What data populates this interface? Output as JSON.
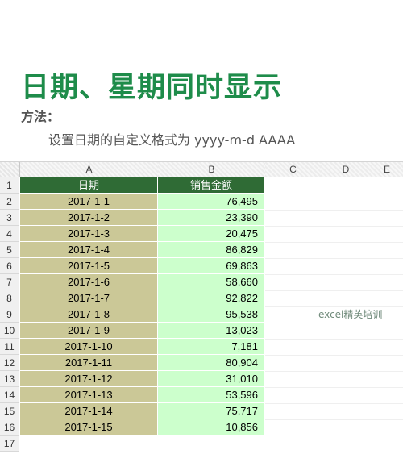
{
  "title": "日期、星期同时显示",
  "method_label": "方法：",
  "instruction": "设置日期的自定义格式为 yyyy-m-d AAAA",
  "watermark": "excel精英培训",
  "sheet": {
    "columns": [
      "A",
      "B",
      "C",
      "D",
      "E"
    ],
    "header": {
      "row": "1",
      "date": "日期",
      "amount": "销售金额"
    },
    "rows": [
      {
        "num": "2",
        "date": "2017-1-1",
        "amount": "76,495"
      },
      {
        "num": "3",
        "date": "2017-1-2",
        "amount": "23,390"
      },
      {
        "num": "4",
        "date": "2017-1-3",
        "amount": "20,475"
      },
      {
        "num": "5",
        "date": "2017-1-4",
        "amount": "86,829"
      },
      {
        "num": "6",
        "date": "2017-1-5",
        "amount": "69,863"
      },
      {
        "num": "7",
        "date": "2017-1-6",
        "amount": "58,660"
      },
      {
        "num": "8",
        "date": "2017-1-7",
        "amount": "92,822"
      },
      {
        "num": "9",
        "date": "2017-1-8",
        "amount": "95,538"
      },
      {
        "num": "10",
        "date": "2017-1-9",
        "amount": "13,023"
      },
      {
        "num": "11",
        "date": "2017-1-10",
        "amount": "7,181"
      },
      {
        "num": "12",
        "date": "2017-1-11",
        "amount": "80,904"
      },
      {
        "num": "13",
        "date": "2017-1-12",
        "amount": "31,010"
      },
      {
        "num": "14",
        "date": "2017-1-13",
        "amount": "53,596"
      },
      {
        "num": "15",
        "date": "2017-1-14",
        "amount": "75,717"
      },
      {
        "num": "16",
        "date": "2017-1-15",
        "amount": "10,856"
      }
    ],
    "empty_row": "17"
  },
  "colors": {
    "title": "#1e8c4a",
    "header_bg": "#2f6b35",
    "date_bg": "#cbc897",
    "amount_bg": "#ccffcc"
  }
}
